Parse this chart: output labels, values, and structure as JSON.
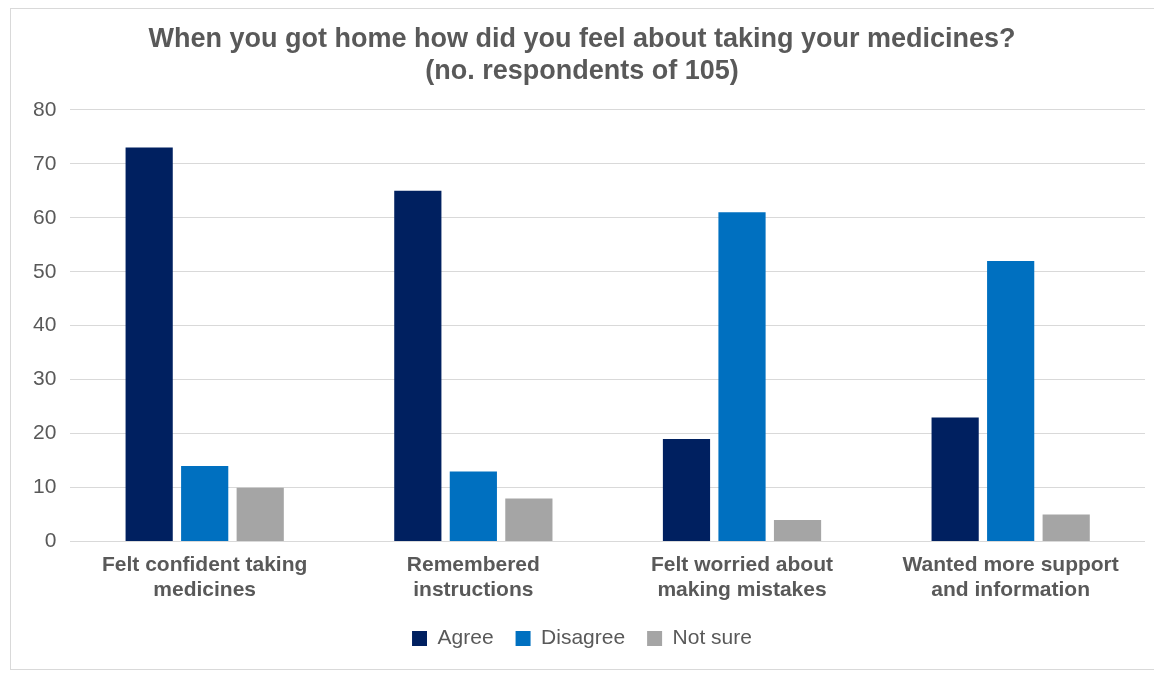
{
  "chart_data": {
    "type": "bar",
    "title": "When you got home how did you feel about taking your medicines? (no. respondents of 105)",
    "categories": [
      "Felt confident taking medicines",
      "Remembered instructions",
      "Felt worried about making mistakes",
      "Wanted more support and information"
    ],
    "series": [
      {
        "name": "Agree",
        "color": "#002060",
        "values": [
          73,
          65,
          19,
          23
        ]
      },
      {
        "name": "Disagree",
        "color": "#0070c0",
        "values": [
          14,
          13,
          61,
          52
        ]
      },
      {
        "name": "Not sure",
        "color": "#a5a5a5",
        "values": [
          10,
          8,
          4,
          5
        ]
      }
    ],
    "ylim": [
      0,
      80
    ],
    "yticks": [
      0,
      10,
      20,
      30,
      40,
      50,
      60,
      70,
      80
    ],
    "grid": "y",
    "legend": "bottom"
  }
}
